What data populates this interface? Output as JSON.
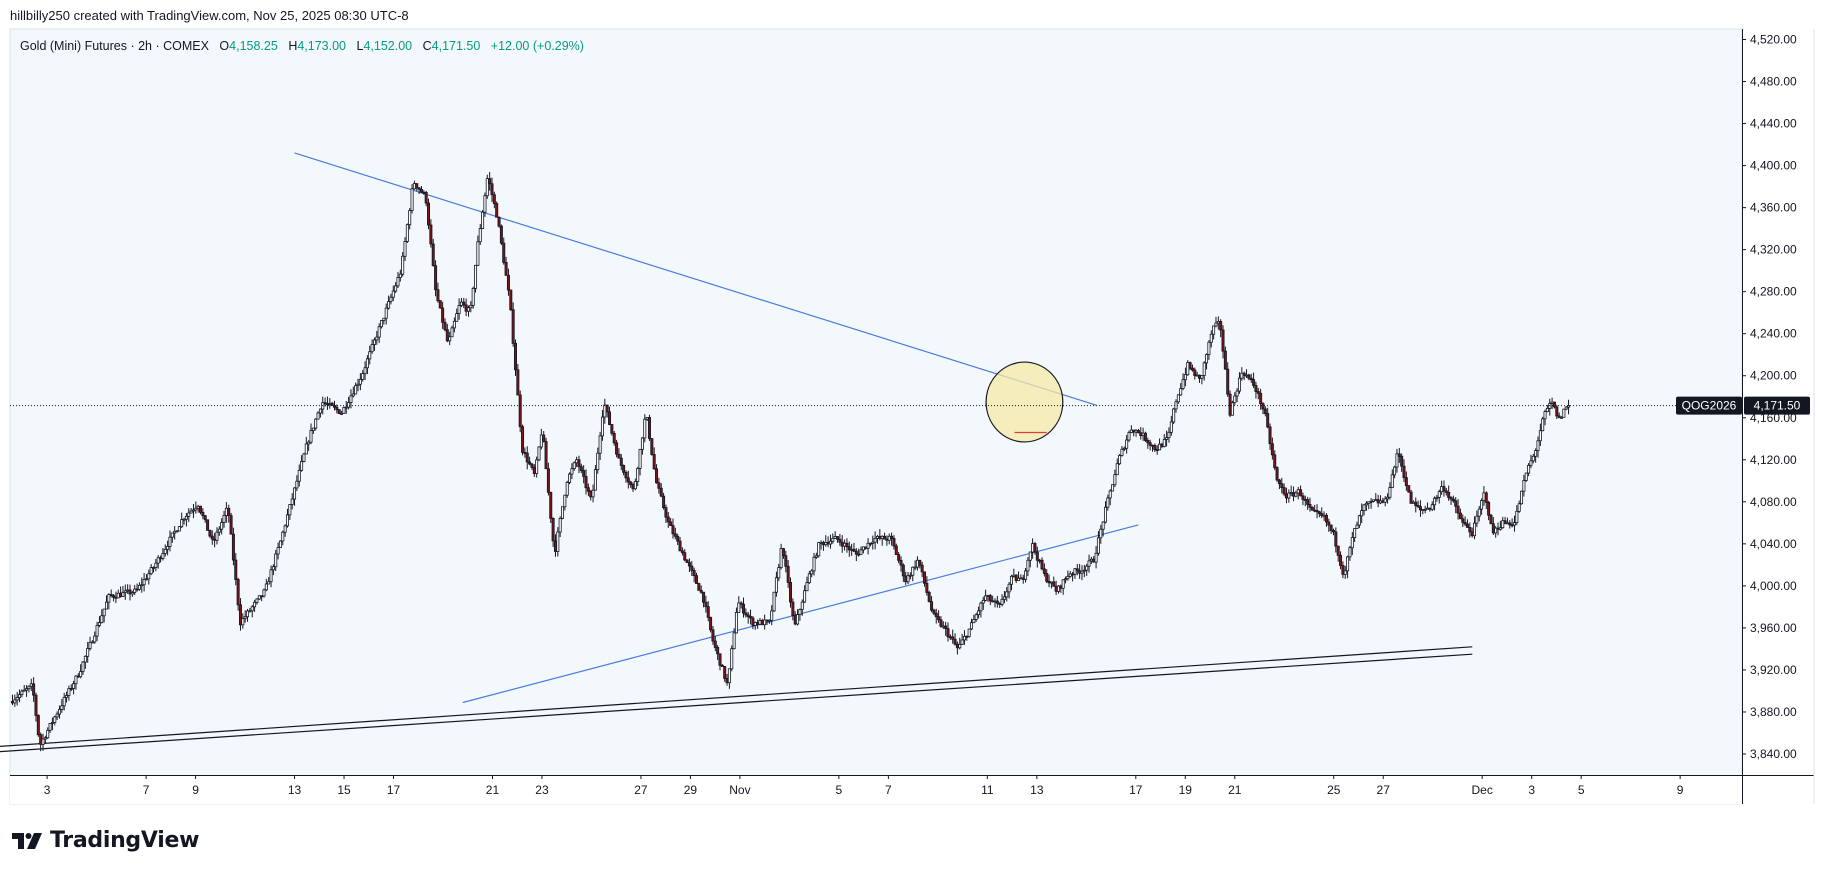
{
  "header": {
    "text": "hillbilly250 created with TradingView.com, Nov 25, 2025 08:30 UTC-8"
  },
  "legend": {
    "name": "Gold (Mini) Futures · 2h · COMEX",
    "o_label": "O",
    "o_value": "4,158.25",
    "h_label": "H",
    "h_value": "4,173.00",
    "l_label": "L",
    "l_value": "4,152.00",
    "c_label": "C",
    "c_value": "4,171.50",
    "change": "+12.00 (+0.29%)"
  },
  "price_tag": {
    "symbol": "QOG2026",
    "value": "4,171.50"
  },
  "footer": {
    "brand": "TradingView"
  },
  "colors": {
    "up": "#ffffff",
    "down": "#7b1414",
    "trendline": "#4a7be0",
    "highlight": "#f6e9a6",
    "plot_bg": "#f3f8fd"
  },
  "chart_data": {
    "type": "candlestick",
    "y_ticks": [
      "4,520.00",
      "4,480.00",
      "4,440.00",
      "4,400.00",
      "4,360.00",
      "4,320.00",
      "4,280.00",
      "4,240.00",
      "4,200.00",
      "4,160.00",
      "4,120.00",
      "4,080.00",
      "4,040.00",
      "4,000.00",
      "3,960.00",
      "3,920.00",
      "3,880.00",
      "3,840.00"
    ],
    "y_tick_values": [
      4520,
      4480,
      4440,
      4400,
      4360,
      4320,
      4280,
      4240,
      4200,
      4160,
      4120,
      4080,
      4040,
      4000,
      3960,
      3920,
      3880,
      3840
    ],
    "ylim": [
      3820,
      4530
    ],
    "x_ticks": [
      {
        "label": "3",
        "day": 3
      },
      {
        "label": "7",
        "day": 7
      },
      {
        "label": "9",
        "day": 9
      },
      {
        "label": "13",
        "day": 13
      },
      {
        "label": "15",
        "day": 15
      },
      {
        "label": "17",
        "day": 17
      },
      {
        "label": "21",
        "day": 21
      },
      {
        "label": "23",
        "day": 23
      },
      {
        "label": "27",
        "day": 27
      },
      {
        "label": "29",
        "day": 29
      },
      {
        "label": "Nov",
        "day": 31
      },
      {
        "label": "5",
        "day": 35
      },
      {
        "label": "7",
        "day": 37
      },
      {
        "label": "11",
        "day": 41
      },
      {
        "label": "13",
        "day": 43
      },
      {
        "label": "17",
        "day": 47
      },
      {
        "label": "19",
        "day": 49
      },
      {
        "label": "21",
        "day": 51
      },
      {
        "label": "25",
        "day": 55
      },
      {
        "label": "27",
        "day": 57
      },
      {
        "label": "Dec",
        "day": 61
      },
      {
        "label": "3",
        "day": 63
      },
      {
        "label": "5",
        "day": 65
      },
      {
        "label": "9",
        "day": 69
      }
    ],
    "xlim_days": [
      1.5,
      71.5
    ],
    "last_close": 4171.5,
    "price_path": [
      [
        1.6,
        3890
      ],
      [
        2.5,
        3905
      ],
      [
        2.8,
        3848
      ],
      [
        3.4,
        3875
      ],
      [
        4.4,
        3918
      ],
      [
        5.6,
        3990
      ],
      [
        6.7,
        3995
      ],
      [
        7.4,
        4018
      ],
      [
        8.6,
        4065
      ],
      [
        9.2,
        4078
      ],
      [
        9.8,
        4040
      ],
      [
        10.4,
        4075
      ],
      [
        10.9,
        3965
      ],
      [
        11.9,
        3995
      ],
      [
        12.5,
        4040
      ],
      [
        13.6,
        4135
      ],
      [
        14.2,
        4175
      ],
      [
        15.0,
        4165
      ],
      [
        15.8,
        4200
      ],
      [
        16.6,
        4250
      ],
      [
        17.4,
        4300
      ],
      [
        17.9,
        4385
      ],
      [
        18.4,
        4370
      ],
      [
        18.8,
        4280
      ],
      [
        19.3,
        4230
      ],
      [
        19.8,
        4270
      ],
      [
        20.2,
        4260
      ],
      [
        20.5,
        4325
      ],
      [
        20.9,
        4390
      ],
      [
        21.3,
        4350
      ],
      [
        21.8,
        4270
      ],
      [
        22.3,
        4130
      ],
      [
        22.8,
        4105
      ],
      [
        23.1,
        4150
      ],
      [
        23.6,
        4030
      ],
      [
        24.1,
        4100
      ],
      [
        24.5,
        4120
      ],
      [
        25.1,
        4080
      ],
      [
        25.6,
        4175
      ],
      [
        26.2,
        4120
      ],
      [
        26.8,
        4090
      ],
      [
        27.3,
        4165
      ],
      [
        27.7,
        4100
      ],
      [
        28.2,
        4060
      ],
      [
        28.8,
        4030
      ],
      [
        29.6,
        3990
      ],
      [
        30.0,
        3948
      ],
      [
        30.6,
        3905
      ],
      [
        31.0,
        3985
      ],
      [
        31.6,
        3965
      ],
      [
        32.3,
        3965
      ],
      [
        32.8,
        4040
      ],
      [
        33.3,
        3960
      ],
      [
        33.9,
        4010
      ],
      [
        34.3,
        4040
      ],
      [
        35.0,
        4045
      ],
      [
        35.8,
        4030
      ],
      [
        36.5,
        4045
      ],
      [
        37.2,
        4045
      ],
      [
        37.8,
        4005
      ],
      [
        38.3,
        4025
      ],
      [
        38.9,
        3972
      ],
      [
        39.4,
        3958
      ],
      [
        39.9,
        3940
      ],
      [
        40.4,
        3960
      ],
      [
        41.0,
        3990
      ],
      [
        41.6,
        3980
      ],
      [
        42.1,
        4008
      ],
      [
        42.5,
        4005
      ],
      [
        42.9,
        4040
      ],
      [
        43.4,
        4010
      ],
      [
        43.9,
        3995
      ],
      [
        44.4,
        4012
      ],
      [
        44.9,
        4015
      ],
      [
        45.4,
        4025
      ],
      [
        45.9,
        4075
      ],
      [
        46.4,
        4120
      ],
      [
        46.9,
        4150
      ],
      [
        47.3,
        4145
      ],
      [
        47.9,
        4130
      ],
      [
        48.4,
        4140
      ],
      [
        48.7,
        4175
      ],
      [
        49.2,
        4210
      ],
      [
        49.7,
        4195
      ],
      [
        50.2,
        4245
      ],
      [
        50.5,
        4250
      ],
      [
        50.9,
        4165
      ],
      [
        51.4,
        4205
      ],
      [
        51.9,
        4190
      ],
      [
        52.3,
        4165
      ],
      [
        52.8,
        4100
      ],
      [
        53.2,
        4085
      ],
      [
        53.7,
        4090
      ],
      [
        54.2,
        4070
      ],
      [
        54.7,
        4065
      ],
      [
        55.1,
        4048
      ],
      [
        55.5,
        4010
      ],
      [
        55.9,
        4050
      ],
      [
        56.3,
        4075
      ],
      [
        56.7,
        4080
      ],
      [
        57.2,
        4080
      ],
      [
        57.7,
        4128
      ],
      [
        58.2,
        4080
      ],
      [
        58.6,
        4072
      ],
      [
        59.0,
        4075
      ],
      [
        59.5,
        4095
      ],
      [
        59.9,
        4080
      ],
      [
        60.3,
        4060
      ],
      [
        60.7,
        4050
      ],
      [
        61.2,
        4090
      ],
      [
        61.5,
        4050
      ],
      [
        61.9,
        4060
      ],
      [
        62.4,
        4060
      ],
      [
        62.9,
        4110
      ],
      [
        63.2,
        4125
      ],
      [
        63.6,
        4162
      ],
      [
        63.9,
        4175
      ],
      [
        64.2,
        4158
      ],
      [
        64.5,
        4171.5
      ]
    ],
    "trendlines": [
      {
        "name": "descending resistance",
        "points": [
          [
            13.0,
            4412
          ],
          [
            45.4,
            4172
          ]
        ]
      },
      {
        "name": "ascending support",
        "points": [
          [
            19.8,
            3889
          ],
          [
            47.1,
            4058
          ]
        ]
      },
      {
        "name": "long-term support lower",
        "points": [
          [
            0.3,
            3841
          ],
          [
            60.6,
            3935
          ]
        ]
      },
      {
        "name": "long-term support upper",
        "points": [
          [
            0.3,
            3846
          ],
          [
            60.6,
            3942
          ]
        ]
      }
    ],
    "highlight_ellipse": {
      "center": [
        42.5,
        4175
      ],
      "semi_axes_days_price": [
        1.55,
        38
      ]
    },
    "red_level": {
      "price": 4146,
      "from": 42.1,
      "to": 43.4
    },
    "grid": false
  }
}
